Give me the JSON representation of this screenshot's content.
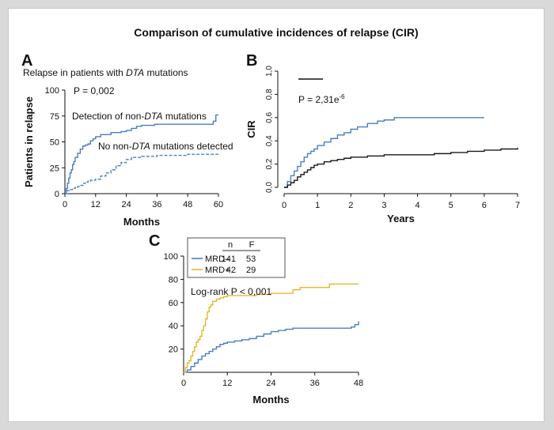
{
  "figure_title": "Comparison of cumulative incidences of relapse (CIR)",
  "chart_data": [
    {
      "panel": "A",
      "type": "line",
      "step": true,
      "title_parts": [
        "Relapse in patients with ",
        "DTA",
        " mutations"
      ],
      "pvalue": "P = 0,002",
      "xlabel": "Months",
      "ylabel": "Patients in relapse",
      "xlim": [
        0,
        60
      ],
      "ylim": [
        0,
        100
      ],
      "xticks": [
        "0",
        "12",
        "24",
        "36",
        "48",
        "60"
      ],
      "yticks": [
        "0",
        "25",
        "50",
        "75",
        "100"
      ],
      "annotations": [
        [
          "Detection of non-",
          "DTA",
          " mutations"
        ],
        [
          "No non-",
          "DTA",
          " mutations detected"
        ]
      ],
      "series": [
        {
          "color": "#4a7fc1",
          "dash": "solid",
          "x": [
            0,
            0.5,
            1,
            1.5,
            2,
            2.5,
            3,
            3.5,
            4,
            5,
            6,
            7,
            8,
            9,
            10,
            11,
            12,
            14,
            16,
            18,
            20,
            22,
            24,
            26,
            28,
            30,
            35,
            40,
            45,
            50,
            55,
            56,
            57,
            58,
            59,
            60
          ],
          "y": [
            0,
            5,
            10,
            15,
            20,
            23,
            28,
            31,
            35,
            39,
            43,
            46,
            47,
            48,
            51,
            53,
            55,
            57,
            57,
            59,
            59,
            60,
            61,
            63,
            65,
            66,
            67,
            67,
            67,
            67,
            67,
            67,
            67,
            70,
            76,
            76
          ]
        },
        {
          "color": "#4a7fc1",
          "dash": "dashed",
          "x": [
            0,
            1,
            2,
            3,
            4,
            5,
            6,
            7,
            8,
            9,
            10,
            12,
            14,
            16,
            18,
            20,
            22,
            24,
            26,
            28,
            30,
            36,
            42,
            48,
            54,
            60
          ],
          "y": [
            0,
            3,
            4,
            5,
            6,
            7,
            8,
            10,
            11,
            12,
            13,
            14,
            17,
            20,
            23,
            27,
            30,
            33,
            35,
            35,
            36,
            37,
            37,
            38,
            38,
            38
          ]
        }
      ]
    },
    {
      "panel": "B",
      "type": "line",
      "step": true,
      "pvalue_base": "P = 2,31e",
      "pvalue_exp": "-6",
      "xlabel": "Years",
      "ylabel": "CIR",
      "xlim": [
        0,
        7
      ],
      "ylim": [
        0,
        1
      ],
      "xticks": [
        "0",
        "1",
        "2",
        "3",
        "4",
        "5",
        "6",
        "7"
      ],
      "yticks": [
        "0,0",
        "0,2",
        "0,4",
        "0,6",
        "0,8",
        "1,0"
      ],
      "series": [
        {
          "color": "#4a7fc1",
          "x": [
            0,
            0.1,
            0.2,
            0.3,
            0.4,
            0.5,
            0.6,
            0.7,
            0.8,
            0.9,
            1.0,
            1.2,
            1.4,
            1.6,
            1.8,
            2.0,
            2.2,
            2.5,
            2.8,
            3.0,
            3.3,
            4.0,
            5.0,
            6.0
          ],
          "y": [
            0,
            0.05,
            0.1,
            0.14,
            0.18,
            0.22,
            0.26,
            0.29,
            0.31,
            0.33,
            0.36,
            0.39,
            0.42,
            0.45,
            0.47,
            0.5,
            0.52,
            0.55,
            0.57,
            0.58,
            0.6,
            0.6,
            0.6,
            0.6
          ]
        },
        {
          "color": "#1a1a1a",
          "x": [
            0,
            0.1,
            0.2,
            0.3,
            0.4,
            0.5,
            0.6,
            0.7,
            0.8,
            0.9,
            1.0,
            1.2,
            1.4,
            1.6,
            1.8,
            2.0,
            2.2,
            2.5,
            3.0,
            3.5,
            4.0,
            4.5,
            5.0,
            5.5,
            6.0,
            6.5,
            7.0
          ],
          "y": [
            0,
            0.02,
            0.04,
            0.06,
            0.09,
            0.11,
            0.13,
            0.15,
            0.17,
            0.19,
            0.2,
            0.22,
            0.23,
            0.24,
            0.25,
            0.26,
            0.26,
            0.27,
            0.28,
            0.28,
            0.28,
            0.29,
            0.3,
            0.31,
            0.32,
            0.33,
            0.34
          ]
        }
      ]
    },
    {
      "panel": "C",
      "type": "line",
      "step": true,
      "pvalue": "Log-rank P < 0,001",
      "xlabel": "Months",
      "ylabel": "",
      "xlim": [
        0,
        48
      ],
      "ylim": [
        0,
        100
      ],
      "xticks": [
        "0",
        "12",
        "24",
        "36",
        "48"
      ],
      "yticks": [
        "20",
        "40",
        "60",
        "80",
        "100"
      ],
      "legend": {
        "header": [
          "n",
          "F"
        ],
        "rows": [
          {
            "label": "MRD–",
            "n": "141",
            "f": "53",
            "color": "#4a7fc1"
          },
          {
            "label": "MRD+",
            "n": "42",
            "f": "29",
            "color": "#e8b52c"
          }
        ]
      },
      "series": [
        {
          "name": "MRD–",
          "color": "#4a7fc1",
          "x": [
            0,
            1,
            2,
            3,
            4,
            5,
            6,
            7,
            8,
            9,
            10,
            11,
            12,
            14,
            16,
            18,
            20,
            22,
            24,
            26,
            28,
            30,
            34,
            38,
            42,
            46,
            47,
            48
          ],
          "y": [
            0,
            2,
            5,
            8,
            11,
            14,
            16,
            18,
            20,
            22,
            24,
            25,
            26,
            27,
            28,
            29,
            31,
            33,
            35,
            36,
            37,
            38,
            38,
            38,
            38,
            39,
            41,
            44
          ]
        },
        {
          "name": "MRD+",
          "color": "#e8b52c",
          "x": [
            0,
            0.5,
            1,
            1.5,
            2,
            2.5,
            3,
            3.5,
            4,
            4.5,
            5,
            5.5,
            6,
            6.5,
            7,
            7.5,
            8,
            9,
            10,
            11,
            12,
            16,
            20,
            24,
            28,
            30,
            32,
            36,
            40,
            44,
            48
          ],
          "y": [
            0,
            4,
            8,
            10,
            14,
            18,
            22,
            26,
            28,
            31,
            36,
            40,
            46,
            52,
            56,
            58,
            61,
            63,
            64,
            65,
            66,
            66,
            67,
            68,
            68,
            71,
            73,
            73,
            76,
            76,
            76
          ]
        }
      ]
    }
  ]
}
